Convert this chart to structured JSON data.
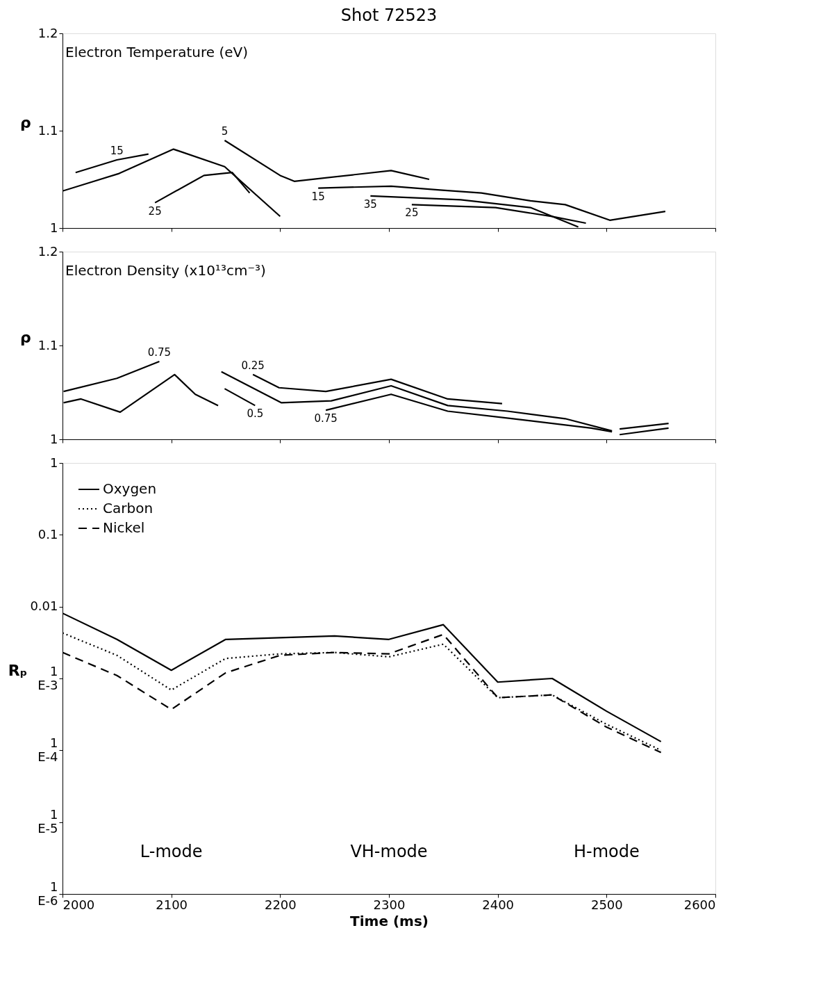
{
  "chart_data": [
    {
      "type": "line",
      "title": "Shot 72523",
      "subtitle": "Electron Temperature (eV)",
      "ylabel": "ρ",
      "xlim": [
        2000,
        2600
      ],
      "xticks": [
        2000,
        2100,
        2200,
        2300,
        2400,
        2500,
        2600
      ],
      "ylim": [
        1,
        1.2
      ],
      "yticks": [
        1,
        1.1,
        1.2
      ],
      "tick_labels": "y",
      "grid": false,
      "legend": false,
      "series": [
        {
          "color": "#000000",
          "line_style": "solid",
          "x": [
            2000,
            2052,
            2102,
            2149,
            2200
          ],
          "values": [
            1.038,
            1.056,
            1.081,
            1.063,
            1.012
          ]
        },
        {
          "name": "15",
          "color": "#000000",
          "line_style": "solid",
          "x": [
            2012,
            2050,
            2079
          ],
          "values": [
            1.057,
            1.07,
            1.076
          ]
        },
        {
          "name": "5",
          "color": "#000000",
          "line_style": "solid",
          "x": [
            2149,
            2200,
            2213,
            2302,
            2337
          ],
          "values": [
            1.09,
            1.054,
            1.048,
            1.059,
            1.05
          ]
        },
        {
          "name": "15",
          "color": "#000000",
          "line_style": "solid",
          "x": [
            2235,
            2302,
            2347,
            2385,
            2430,
            2462,
            2503,
            2554
          ],
          "values": [
            1.041,
            1.043,
            1.039,
            1.036,
            1.028,
            1.024,
            1.008,
            1.017
          ]
        },
        {
          "name": "25",
          "color": "#000000",
          "line_style": "solid",
          "x": [
            2085,
            2130,
            2156,
            2172
          ],
          "values": [
            1.026,
            1.054,
            1.057,
            1.036
          ]
        },
        {
          "name": "35",
          "color": "#000000",
          "line_style": "solid",
          "x": [
            2283,
            2366,
            2430,
            2474
          ],
          "values": [
            1.033,
            1.029,
            1.021,
            1.001
          ]
        },
        {
          "name": "25",
          "color": "#000000",
          "line_style": "solid",
          "x": [
            2321,
            2398,
            2449,
            2481
          ],
          "values": [
            1.024,
            1.021,
            1.012,
            1.005
          ]
        }
      ]
    },
    {
      "type": "line",
      "subtitle": "Electron Density (x10¹³cm⁻³)",
      "ylabel": "ρ",
      "xlim": [
        2000,
        2600
      ],
      "xticks": [
        2000,
        2100,
        2200,
        2300,
        2400,
        2500,
        2600
      ],
      "ylim": [
        1,
        1.2
      ],
      "yticks": [
        1,
        1.1,
        1.2
      ],
      "tick_labels": "y",
      "grid": false,
      "legend": false,
      "series": [
        {
          "name": "0.75",
          "color": "#000000",
          "line_style": "solid",
          "x": [
            2001,
            2050,
            2089
          ],
          "values": [
            1.051,
            1.065,
            1.083
          ]
        },
        {
          "color": "#000000",
          "line_style": "solid",
          "x": [
            2001,
            2017,
            2053,
            2103,
            2122,
            2143
          ],
          "values": [
            1.039,
            1.043,
            1.029,
            1.069,
            1.048,
            1.036
          ]
        },
        {
          "name": "0.5",
          "color": "#000000",
          "line_style": "solid",
          "x": [
            2149,
            2177
          ],
          "values": [
            1.054,
            1.036
          ]
        },
        {
          "name": "0.25",
          "color": "#000000",
          "line_style": "solid",
          "x": [
            2175,
            2199,
            2242,
            2302,
            2354,
            2404
          ],
          "values": [
            1.069,
            1.055,
            1.051,
            1.064,
            1.043,
            1.038
          ]
        },
        {
          "color": "#000000",
          "line_style": "solid",
          "x": [
            2146,
            2201,
            2247,
            2302,
            2354,
            2409,
            2462,
            2505
          ],
          "values": [
            1.072,
            1.039,
            1.041,
            1.057,
            1.036,
            1.03,
            1.022,
            1.009
          ]
        },
        {
          "name": "0.75",
          "color": "#000000",
          "line_style": "solid",
          "x": [
            2242,
            2302,
            2354,
            2414,
            2486,
            2505
          ],
          "values": [
            1.031,
            1.048,
            1.03,
            1.022,
            1.012,
            1.008
          ]
        },
        {
          "color": "#000000",
          "line_style": "solid",
          "x": [
            2512,
            2557
          ],
          "values": [
            1.011,
            1.017
          ]
        },
        {
          "color": "#000000",
          "line_style": "solid",
          "x": [
            2512,
            2557
          ],
          "values": [
            1.005,
            1.012
          ]
        }
      ]
    },
    {
      "type": "line",
      "xlabel": "Time (ms)",
      "ylabel": "Rₚ",
      "log": "y",
      "xlim": [
        2000,
        2600
      ],
      "xticks": [
        2000,
        2100,
        2200,
        2300,
        2400,
        2500,
        2600
      ],
      "ylim": [
        1e-06,
        1
      ],
      "yticks": [
        1,
        0.1,
        0.01,
        {
          "value": 0.001,
          "label": "1\nE-3"
        },
        {
          "value": 0.0001,
          "label": "1\nE-4"
        },
        {
          "value": 1e-05,
          "label": "1\nE-5"
        },
        {
          "value": 1e-06,
          "label": "1\nE-6"
        }
      ],
      "grid": false,
      "legend": "top left",
      "x": [
        2000,
        2050,
        2100,
        2150,
        2200,
        2250,
        2300,
        2350,
        2400,
        2450,
        2500,
        2550
      ],
      "series": [
        {
          "name": "Oxygen",
          "color": "#000000",
          "line_style": "solid",
          "values": [
            0.0081,
            0.0035,
            0.0013,
            0.0035,
            0.0037,
            0.0039,
            0.0035,
            0.0056,
            0.00089,
            0.001,
            0.00035,
            0.000132
          ]
        },
        {
          "name": "Carbon",
          "color": "#000000",
          "line_style": "dotted",
          "values": [
            0.0043,
            0.0021,
            0.00069,
            0.0019,
            0.0022,
            0.0023,
            0.002,
            0.003,
            0.00054,
            0.00059,
            0.00023,
            0.0001
          ]
        },
        {
          "name": "Nickel",
          "color": "#000000",
          "line_style": "dashed",
          "values": [
            0.0023,
            0.0011,
            0.00037,
            0.0012,
            0.0021,
            0.0023,
            0.0022,
            0.0041,
            0.00054,
            0.00059,
            0.00021,
            9.3e-05
          ]
        }
      ],
      "annotations": [
        "L-mode",
        "VH-mode",
        "H-mode"
      ]
    }
  ]
}
